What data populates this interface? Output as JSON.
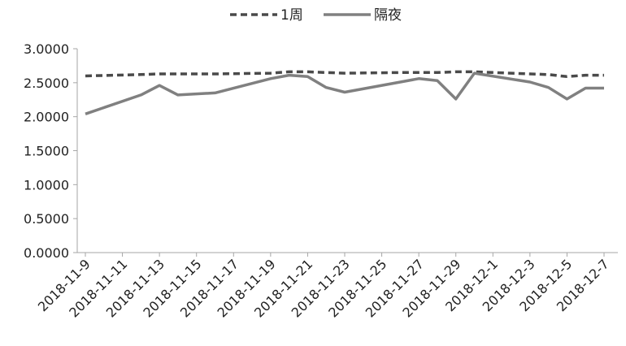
{
  "chart_data": {
    "type": "line",
    "legend_position": "top",
    "grid": false,
    "ylim": [
      0,
      3
    ],
    "y_ticks": [
      "0.0000",
      "0.5000",
      "1.0000",
      "1.5000",
      "2.0000",
      "2.5000",
      "3.0000"
    ],
    "x_ticks": [
      "2018-11-9",
      "2018-11-11",
      "2018-11-13",
      "2018-11-15",
      "2018-11-17",
      "2018-11-19",
      "2018-11-21",
      "2018-11-23",
      "2018-11-25",
      "2018-11-27",
      "2018-11-29",
      "2018-12-1",
      "2018-12-3",
      "2018-12-5",
      "2018-12-7"
    ],
    "x_start": "2018-11-9",
    "x_end": "2018-12-7",
    "series": [
      {
        "name": "1周",
        "color": "#4a4a4a",
        "style": "dashed",
        "points": [
          [
            "2018-11-9",
            2.6
          ],
          [
            "2018-11-12",
            2.62
          ],
          [
            "2018-11-13",
            2.63
          ],
          [
            "2018-11-14",
            2.63
          ],
          [
            "2018-11-15",
            2.63
          ],
          [
            "2018-11-16",
            2.63
          ],
          [
            "2018-11-19",
            2.64
          ],
          [
            "2018-11-20",
            2.66
          ],
          [
            "2018-11-21",
            2.66
          ],
          [
            "2018-11-22",
            2.65
          ],
          [
            "2018-11-23",
            2.64
          ],
          [
            "2018-11-26",
            2.65
          ],
          [
            "2018-11-27",
            2.65
          ],
          [
            "2018-11-28",
            2.65
          ],
          [
            "2018-11-29",
            2.66
          ],
          [
            "2018-11-30",
            2.66
          ],
          [
            "2018-12-3",
            2.63
          ],
          [
            "2018-12-4",
            2.62
          ],
          [
            "2018-12-5",
            2.59
          ],
          [
            "2018-12-6",
            2.61
          ],
          [
            "2018-12-7",
            2.61
          ]
        ]
      },
      {
        "name": "隔夜",
        "color": "#808080",
        "style": "solid",
        "points": [
          [
            "2018-11-9",
            2.04
          ],
          [
            "2018-11-12",
            2.32
          ],
          [
            "2018-11-13",
            2.46
          ],
          [
            "2018-11-14",
            2.32
          ],
          [
            "2018-11-16",
            2.35
          ],
          [
            "2018-11-19",
            2.56
          ],
          [
            "2018-11-20",
            2.61
          ],
          [
            "2018-11-21",
            2.59
          ],
          [
            "2018-11-22",
            2.43
          ],
          [
            "2018-11-23",
            2.36
          ],
          [
            "2018-11-26",
            2.51
          ],
          [
            "2018-11-27",
            2.56
          ],
          [
            "2018-11-28",
            2.53
          ],
          [
            "2018-11-29",
            2.26
          ],
          [
            "2018-11-30",
            2.64
          ],
          [
            "2018-12-3",
            2.51
          ],
          [
            "2018-12-4",
            2.43
          ],
          [
            "2018-12-5",
            2.26
          ],
          [
            "2018-12-6",
            2.42
          ],
          [
            "2018-12-7",
            2.42
          ]
        ]
      }
    ]
  }
}
